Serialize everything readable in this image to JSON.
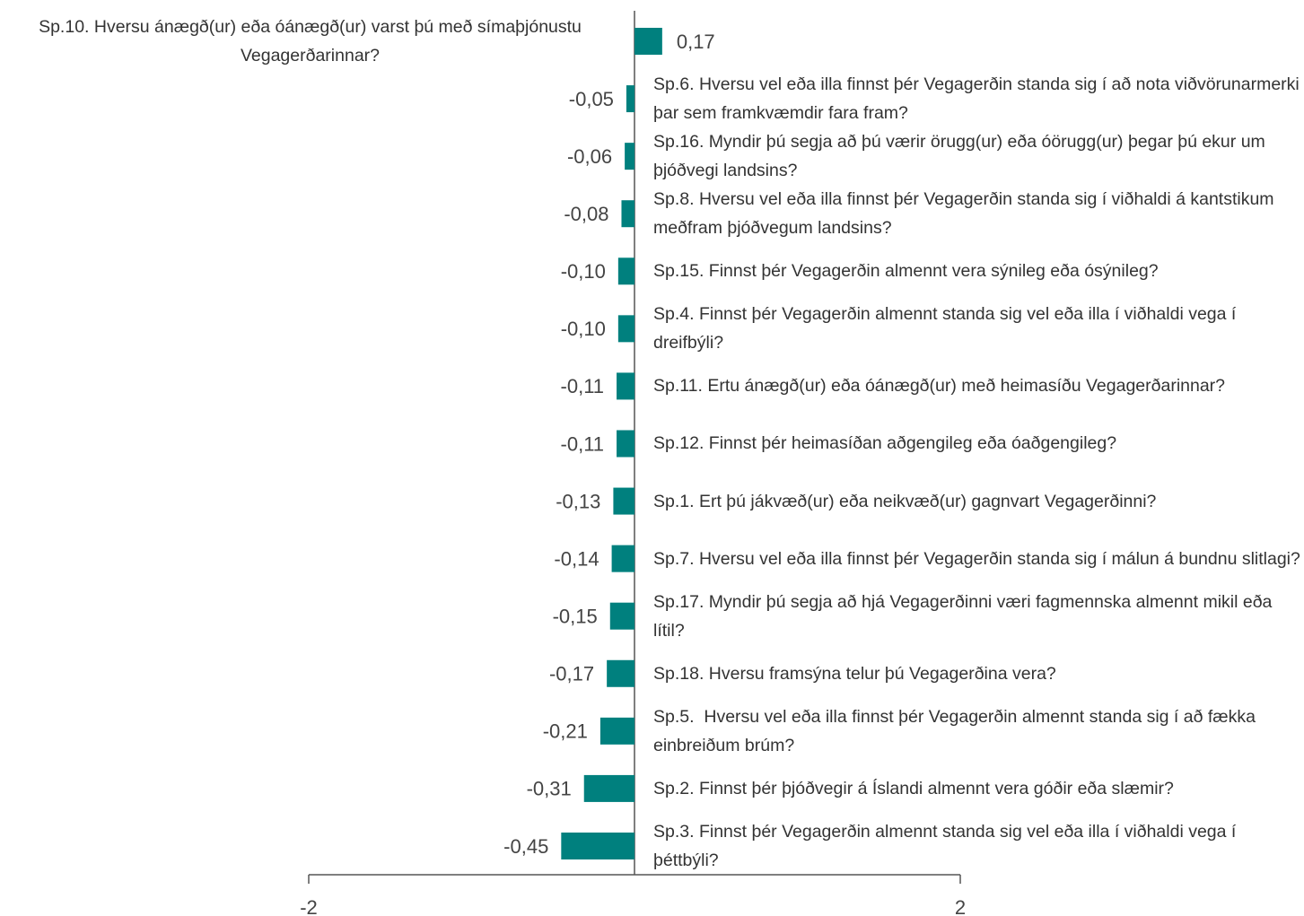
{
  "chart_data": {
    "type": "bar",
    "orientation": "horizontal",
    "categories": [
      "Sp.10. Hversu ánægð(ur) eða óánægð(ur) varst þú með símaþjónustu Vegagerðarinnar?",
      "Sp.6. Hversu vel eða illa finnst þér Vegagerðin standa sig í að nota viðvörunarmerki þar sem framkvæmdir fara fram?",
      "Sp.16. Myndir þú segja að þú værir örugg(ur) eða óörugg(ur) þegar þú ekur um þjóðvegi landsins?",
      "Sp.8. Hversu vel eða illa finnst þér Vegagerðin standa sig í viðhaldi á kantstikum meðfram þjóðvegum landsins?",
      "Sp.15. Finnst þér Vegagerðin almennt vera sýnileg eða ósýnileg?",
      "Sp.4. Finnst þér Vegagerðin almennt standa sig vel eða illa í viðhaldi vega í dreifbýli?",
      "Sp.11. Ertu ánægð(ur) eða óánægð(ur) með heimasíðu Vegagerðarinnar?",
      "Sp.12. Finnst þér heimasíðan aðgengileg eða óaðgengileg?",
      "Sp.1. Ert þú jákvæð(ur) eða neikvæð(ur) gagnvart Vegagerðinni?",
      "Sp.7. Hversu vel eða illa finnst þér Vegagerðin standa sig í málun á bundnu slitlagi?",
      "Sp.17. Myndir þú segja að hjá Vegagerðinni væri fagmennska almennt mikil eða lítil?",
      "Sp.18. Hversu framsýna telur þú Vegagerðina vera?",
      "Sp.5.  Hversu vel eða illa finnst þér Vegagerðin almennt standa sig í að fækka einbreiðum brúm?",
      "Sp.2. Finnst þér þjóðvegir á Íslandi almennt vera góðir eða slæmir?",
      "Sp.3. Finnst þér Vegagerðin almennt standa sig vel eða illa í viðhaldi vega í þéttbýli?"
    ],
    "values": [
      0.17,
      -0.05,
      -0.06,
      -0.08,
      -0.1,
      -0.1,
      -0.11,
      -0.11,
      -0.13,
      -0.14,
      -0.15,
      -0.17,
      -0.21,
      -0.31,
      -0.45
    ],
    "value_labels": [
      "0,17",
      "-0,05",
      "-0,06",
      "-0,08",
      "-0,10",
      "-0,10",
      "-0,11",
      "-0,11",
      "-0,13",
      "-0,14",
      "-0,15",
      "-0,17",
      "-0,21",
      "-0,31",
      "-0,45"
    ],
    "color": "#00807e",
    "xlim": [
      -2,
      2
    ],
    "xticks": [
      -2,
      2
    ]
  }
}
